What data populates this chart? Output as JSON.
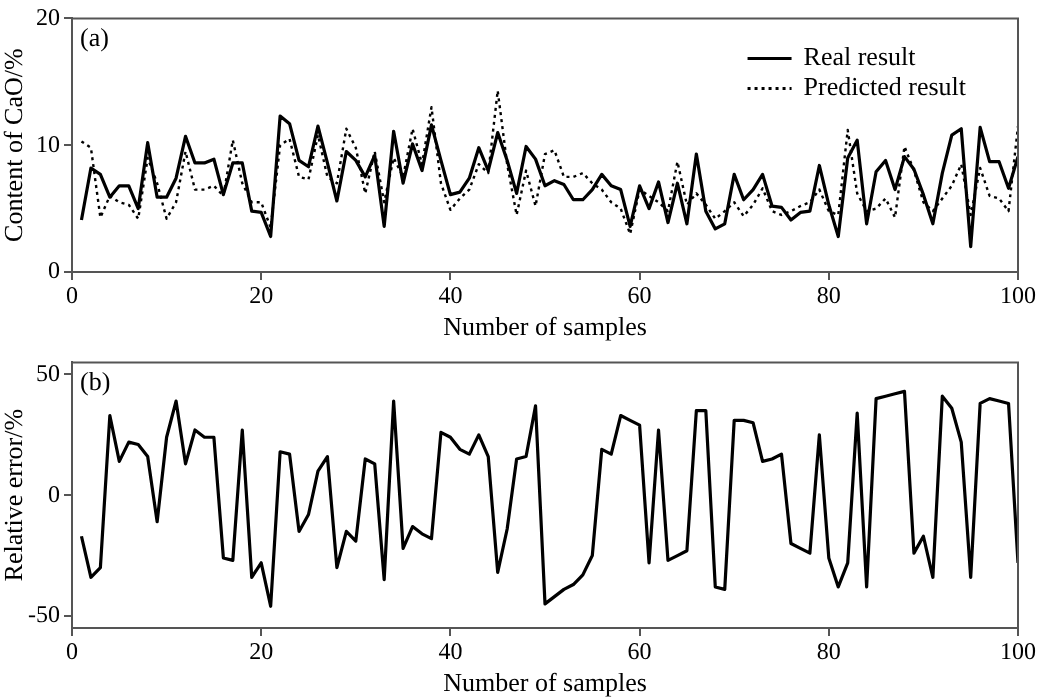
{
  "chart_data": [
    {
      "type": "line",
      "xlabel": "Number of samples",
      "ylabel": "Content of CaO/%",
      "annotations": [
        "(a)"
      ],
      "xlim": [
        0,
        100
      ],
      "xticks": [
        0,
        20,
        40,
        60,
        80,
        100
      ],
      "ylim": [
        0,
        20
      ],
      "yticks": [
        0,
        10,
        20
      ],
      "grid": false,
      "legend": "top right",
      "marker": "none",
      "x": [
        1,
        2,
        3,
        4,
        5,
        6,
        7,
        8,
        9,
        10,
        11,
        12,
        13,
        14,
        15,
        16,
        17,
        18,
        19,
        20,
        21,
        22,
        23,
        24,
        25,
        26,
        27,
        28,
        29,
        30,
        31,
        32,
        33,
        34,
        35,
        36,
        37,
        38,
        39,
        40,
        41,
        42,
        43,
        44,
        45,
        46,
        47,
        48,
        49,
        50,
        51,
        52,
        53,
        54,
        55,
        56,
        57,
        58,
        59,
        60,
        61,
        62,
        63,
        64,
        65,
        66,
        67,
        68,
        69,
        70,
        71,
        72,
        73,
        74,
        75,
        76,
        77,
        78,
        79,
        80,
        81,
        82,
        83,
        84,
        85,
        86,
        87,
        88,
        89,
        90,
        91,
        92,
        93,
        94,
        95,
        96,
        97,
        98,
        99,
        100
      ],
      "series": [
        {
          "name": "Real result",
          "color": "#000000",
          "line_style": "solid",
          "values": [
            4.1,
            8.2,
            7.7,
            5.9,
            6.8,
            6.8,
            5.0,
            10.2,
            5.9,
            5.9,
            7.4,
            10.7,
            8.6,
            8.6,
            8.9,
            6.1,
            8.6,
            8.6,
            4.8,
            4.7,
            2.8,
            12.3,
            11.7,
            8.8,
            8.3,
            11.5,
            8.6,
            5.6,
            9.5,
            8.8,
            7.5,
            9.2,
            3.6,
            11.1,
            7.0,
            10.1,
            8.0,
            11.6,
            8.8,
            6.1,
            6.3,
            7.4,
            9.8,
            8.0,
            11.0,
            8.8,
            6.2,
            9.9,
            8.9,
            6.8,
            7.2,
            6.9,
            5.7,
            5.7,
            6.5,
            7.7,
            6.8,
            6.5,
            3.6,
            6.8,
            5.0,
            7.1,
            3.9,
            7.0,
            3.8,
            9.3,
            4.8,
            3.4,
            3.8,
            7.7,
            5.7,
            6.5,
            7.7,
            5.2,
            5.1,
            4.1,
            4.7,
            4.8,
            8.4,
            5.3,
            2.8,
            9.0,
            10.4,
            3.8,
            7.9,
            8.8,
            6.5,
            9.1,
            8.1,
            6.1,
            3.8,
            7.8,
            10.8,
            11.3,
            2.0,
            11.4,
            8.7,
            8.7,
            6.6,
            9.1
          ]
        },
        {
          "name": "Predicted result",
          "color": "#000000",
          "line_style": "dotted",
          "values": [
            10.3,
            9.8,
            4.3,
            6.0,
            5.5,
            5.3,
            4.2,
            9.0,
            7.0,
            4.2,
            5.5,
            9.5,
            6.5,
            6.5,
            6.8,
            6.0,
            10.4,
            7.0,
            5.5,
            5.5,
            3.5,
            10.0,
            10.5,
            7.5,
            7.3,
            10.8,
            7.5,
            7.0,
            11.3,
            9.8,
            6.2,
            9.5,
            5.5,
            9.0,
            7.5,
            11.3,
            8.5,
            13.0,
            7.0,
            4.9,
            5.8,
            6.5,
            8.5,
            7.8,
            14.3,
            8.5,
            4.5,
            8.0,
            5.2,
            9.3,
            9.6,
            7.5,
            7.5,
            7.8,
            7.0,
            6.5,
            5.5,
            5.0,
            3.0,
            6.5,
            6.0,
            5.5,
            4.8,
            8.7,
            5.3,
            6.2,
            5.3,
            4.2,
            4.8,
            5.5,
            4.4,
            5.3,
            6.6,
            4.8,
            4.5,
            4.8,
            5.2,
            5.5,
            6.5,
            4.8,
            4.5,
            11.2,
            6.2,
            4.8,
            5.0,
            5.8,
            4.3,
            9.9,
            8.0,
            5.5,
            4.8,
            5.8,
            6.8,
            8.5,
            4.5,
            8.2,
            6.0,
            5.8,
            4.8,
            11.5
          ]
        }
      ]
    },
    {
      "type": "line",
      "xlabel": "Number of samples",
      "ylabel": "Relative error/%",
      "annotations": [
        "(b)"
      ],
      "xlim": [
        0,
        100
      ],
      "xticks": [
        0,
        20,
        40,
        60,
        80,
        100
      ],
      "ylim": [
        -55,
        55
      ],
      "yticks": [
        -50,
        0,
        50
      ],
      "grid": false,
      "legend": false,
      "marker": "none",
      "x": [
        1,
        2,
        3,
        4,
        5,
        6,
        7,
        8,
        9,
        10,
        11,
        12,
        13,
        14,
        15,
        16,
        17,
        18,
        19,
        20,
        21,
        22,
        23,
        24,
        25,
        26,
        27,
        28,
        29,
        30,
        31,
        32,
        33,
        34,
        35,
        36,
        37,
        38,
        39,
        40,
        41,
        42,
        43,
        44,
        45,
        46,
        47,
        48,
        49,
        50,
        51,
        52,
        53,
        54,
        55,
        56,
        57,
        58,
        59,
        60,
        61,
        62,
        63,
        64,
        65,
        66,
        67,
        68,
        69,
        70,
        71,
        72,
        73,
        74,
        75,
        76,
        77,
        78,
        79,
        80,
        81,
        82,
        83,
        84,
        85,
        86,
        87,
        88,
        89,
        90,
        91,
        92,
        93,
        94,
        95,
        96,
        97,
        98,
        99,
        100
      ],
      "series": [
        {
          "color": "#000000",
          "line_style": "solid",
          "values": [
            -17,
            -34,
            -30,
            33,
            14,
            22,
            21,
            16,
            -11,
            24,
            39,
            13,
            27,
            24,
            24,
            -26,
            -27,
            27,
            -34,
            -28,
            -46,
            18,
            17,
            -15,
            -8,
            10,
            16,
            -30,
            -15,
            -19,
            15,
            13,
            -35,
            39,
            -22,
            -13,
            -16,
            -18,
            26,
            24,
            19,
            17,
            25,
            16,
            -32,
            -14,
            15,
            16,
            37,
            -45,
            -42,
            -39,
            -37,
            -33,
            -25,
            19,
            17,
            33,
            31,
            29,
            -28,
            27,
            -27,
            -25,
            -23,
            35,
            35,
            -38,
            -39,
            31,
            31,
            30,
            14,
            15,
            17,
            -20,
            -22,
            -24,
            25,
            -26,
            -38,
            -28,
            34,
            -38,
            40,
            41,
            42,
            43,
            -24,
            -17,
            -34,
            41,
            36,
            22,
            -34,
            38,
            40,
            39,
            38,
            -28
          ]
        }
      ]
    }
  ]
}
